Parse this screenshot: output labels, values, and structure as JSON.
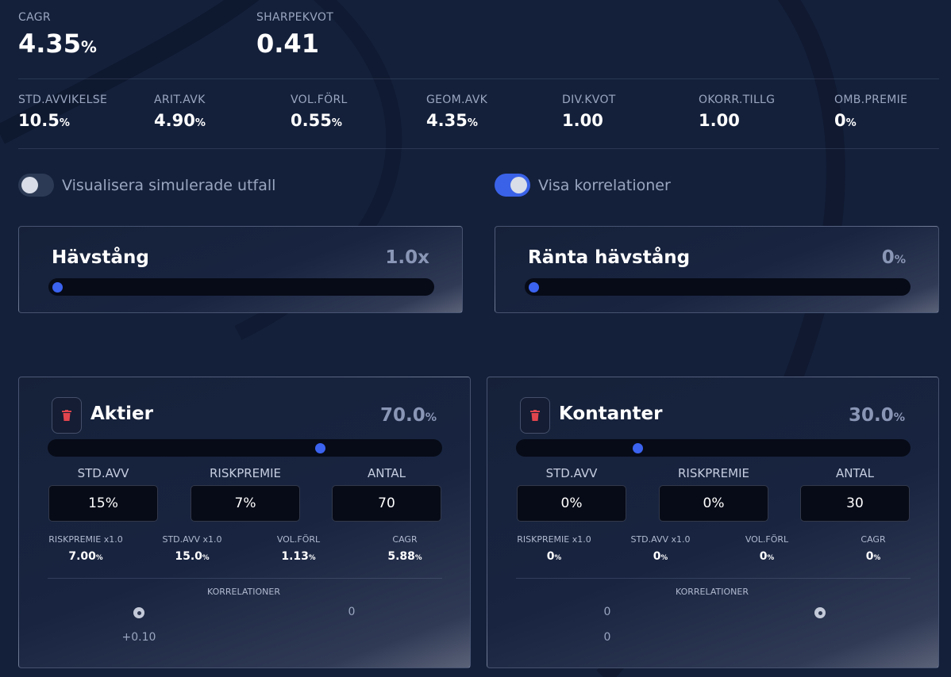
{
  "top": {
    "cagr": {
      "label": "CAGR",
      "value": "4.35",
      "unit": "%"
    },
    "sharpe": {
      "label": "SHARPEKVOT",
      "value": "0.41"
    }
  },
  "stats": [
    {
      "label": "STD.AVVIKELSE",
      "value": "10.5",
      "unit": "%"
    },
    {
      "label": "ARIT.AVK",
      "value": "4.90",
      "unit": "%"
    },
    {
      "label": "VOL.FÖRL",
      "value": "0.55",
      "unit": "%"
    },
    {
      "label": "GEOM.AVK",
      "value": "4.35",
      "unit": "%"
    },
    {
      "label": "DIV.KVOT",
      "value": "1.00",
      "unit": ""
    },
    {
      "label": "OKORR.TILLG",
      "value": "1.00",
      "unit": ""
    },
    {
      "label": "OMB.PREMIE",
      "value": "0",
      "unit": "%"
    }
  ],
  "toggles": {
    "simulate": {
      "label": "Visualisera simulerade utfall",
      "on": false
    },
    "correlations": {
      "label": "Visa korrelationer",
      "on": true
    }
  },
  "leverage": {
    "title": "Hävstång",
    "value": "1.0x",
    "level": 0
  },
  "rate_leverage": {
    "title": "Ränta hävstång",
    "value": "0",
    "unit": "%",
    "level": 0
  },
  "assets": [
    {
      "name": "Aktier",
      "weight": "70.0",
      "weight_unit": "%",
      "slider_fraction": 0.7,
      "columns": {
        "std": "STD.AVV",
        "risk": "RISKPREMIE",
        "count": "ANTAL"
      },
      "inputs": {
        "std": "15%",
        "risk": "7%",
        "count": "70"
      },
      "derived": [
        {
          "label": "RISKPREMIE x1.0",
          "value": "7.00",
          "unit": "%"
        },
        {
          "label": "STD.AVV x1.0",
          "value": "15.0",
          "unit": "%"
        },
        {
          "label": "VOL.FÖRL",
          "value": "1.13",
          "unit": "%"
        },
        {
          "label": "CAGR",
          "value": "5.88",
          "unit": "%"
        }
      ],
      "correlations_title": "KORRELATIONER",
      "corr": {
        "r0c1": "0",
        "r1c0": "+0.10"
      }
    },
    {
      "name": "Kontanter",
      "weight": "30.0",
      "weight_unit": "%",
      "slider_fraction": 0.3,
      "columns": {
        "std": "STD.AVV",
        "risk": "RISKPREMIE",
        "count": "ANTAL"
      },
      "inputs": {
        "std": "0%",
        "risk": "0%",
        "count": "30"
      },
      "derived": [
        {
          "label": "RISKPREMIE x1.0",
          "value": "0",
          "unit": "%"
        },
        {
          "label": "STD.AVV x1.0",
          "value": "0",
          "unit": "%"
        },
        {
          "label": "VOL.FÖRL",
          "value": "0",
          "unit": "%"
        },
        {
          "label": "CAGR",
          "value": "0",
          "unit": "%"
        }
      ],
      "correlations_title": "KORRELATIONER",
      "corr": {
        "r0c0": "0",
        "r1c0": "0"
      }
    }
  ],
  "icons": {
    "trash": "trash-icon",
    "diag": "correlation-self-icon"
  },
  "colors": {
    "accent": "#3b63f0",
    "danger": "#e0454e",
    "background": "#14203a"
  }
}
